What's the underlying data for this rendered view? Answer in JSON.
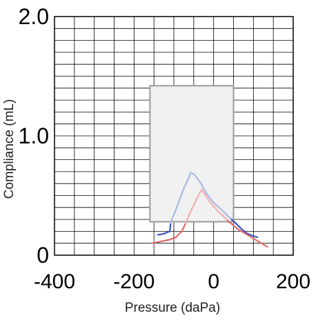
{
  "chart_data": {
    "type": "line",
    "xlabel": "Pressure (daPa)",
    "ylabel": "Compliance (mL)",
    "xlim": [
      -400,
      200
    ],
    "ylim": [
      0,
      2.0
    ],
    "x_ticks": [
      -400,
      -200,
      0,
      200
    ],
    "x_tick_labels": [
      "-400",
      "-200",
      "0",
      "200"
    ],
    "y_ticks": [
      0,
      1.0,
      2.0
    ],
    "y_tick_labels": [
      "0",
      "1.0",
      "2.0"
    ],
    "grid": true,
    "normal_region": {
      "x": [
        -160,
        50
      ],
      "y": [
        0.28,
        1.42
      ]
    },
    "colors": {
      "grid": "#000000",
      "region_fill": "#f1f1f1",
      "region_stroke": "#9a9a9a",
      "blue_dark": "#3a55c4",
      "blue_light": "#a8b8e6",
      "red_dark": "#e06a6a",
      "red_light": "#f1b0b0"
    },
    "series": [
      {
        "color": "blue",
        "points": [
          [
            -140,
            0.17
          ],
          [
            -125,
            0.18
          ],
          [
            -110,
            0.2
          ],
          [
            -108,
            0.27
          ],
          [
            -105,
            0.3
          ],
          [
            -95,
            0.38
          ],
          [
            -85,
            0.47
          ],
          [
            -75,
            0.56
          ],
          [
            -65,
            0.63
          ],
          [
            -58,
            0.69
          ],
          [
            -50,
            0.68
          ],
          [
            -40,
            0.64
          ],
          [
            -30,
            0.59
          ],
          [
            -20,
            0.53
          ],
          [
            -10,
            0.48
          ],
          [
            0,
            0.44
          ],
          [
            10,
            0.41
          ],
          [
            20,
            0.38
          ],
          [
            35,
            0.33
          ],
          [
            45,
            0.3
          ],
          [
            55,
            0.27
          ],
          [
            70,
            0.22
          ],
          [
            85,
            0.18
          ],
          [
            100,
            0.16
          ],
          [
            110,
            0.15
          ]
        ]
      },
      {
        "color": "red",
        "points": [
          [
            -155,
            0.1
          ],
          [
            -140,
            0.11
          ],
          [
            -125,
            0.12
          ],
          [
            -110,
            0.13
          ],
          [
            -95,
            0.15
          ],
          [
            -80,
            0.2
          ],
          [
            -70,
            0.27
          ],
          [
            -60,
            0.35
          ],
          [
            -50,
            0.42
          ],
          [
            -40,
            0.49
          ],
          [
            -30,
            0.55
          ],
          [
            -20,
            0.5
          ],
          [
            -10,
            0.45
          ],
          [
            0,
            0.41
          ],
          [
            10,
            0.37
          ],
          [
            20,
            0.34
          ],
          [
            35,
            0.29
          ],
          [
            50,
            0.25
          ],
          [
            60,
            0.22
          ],
          [
            80,
            0.18
          ],
          [
            100,
            0.14
          ],
          [
            120,
            0.1
          ],
          [
            135,
            0.07
          ]
        ]
      }
    ]
  }
}
